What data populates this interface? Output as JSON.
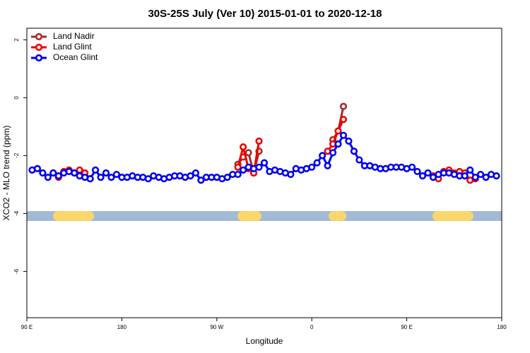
{
  "chart_data": {
    "type": "line",
    "title": "30S-25S July (Ver 10)   2015-01-01 to 2020-12-18",
    "xlabel": "Longitude",
    "ylabel": "XCO2 - MLO trend (ppm)",
    "xlim": [
      90,
      540
    ],
    "ylim": [
      -7.6,
      2.4
    ],
    "xticks": [
      {
        "value": 90,
        "label": "90 E"
      },
      {
        "value": 180,
        "label": "180"
      },
      {
        "value": 270,
        "label": "90 W"
      },
      {
        "value": 360,
        "label": "0"
      },
      {
        "value": 450,
        "label": "90 E"
      },
      {
        "value": 540,
        "label": "180"
      }
    ],
    "yticks": [
      -6,
      -4,
      -2,
      0,
      2
    ],
    "legend": "top-left",
    "series": [
      {
        "name": "Land Nadir",
        "color": "#a52a2a",
        "x": [
          290,
          295,
          300,
          305,
          310,
          315,
          380,
          385,
          390
        ],
        "values": [
          -2.3,
          -2.05,
          -1.9,
          -2.6,
          -1.85,
          null,
          -1.45,
          -1.15,
          -0.3
        ]
      },
      {
        "name": "Land Glint",
        "color": "#ee0000",
        "x": [
          115,
          120,
          125,
          130,
          135,
          140,
          145,
          150,
          155,
          290,
          295,
          300,
          305,
          310,
          315,
          375,
          380,
          385,
          390,
          395,
          475,
          480,
          485,
          490,
          495,
          500,
          505,
          510,
          515
        ],
        "values": [
          -2.6,
          -2.75,
          -2.55,
          -2.5,
          -2.6,
          -2.5,
          -2.6,
          -2.8,
          null,
          -2.4,
          -1.7,
          -2.45,
          -2.6,
          -1.5,
          null,
          -1.85,
          -1.6,
          -1.15,
          -0.75,
          null,
          -2.7,
          -2.8,
          -2.55,
          -2.5,
          -2.6,
          -2.55,
          -2.6,
          -2.85,
          -2.8
        ]
      },
      {
        "name": "Ocean Glint",
        "color": "#0000ee",
        "x": [
          95,
          100,
          105,
          110,
          115,
          120,
          125,
          130,
          135,
          140,
          145,
          150,
          155,
          160,
          165,
          170,
          175,
          180,
          185,
          190,
          195,
          200,
          205,
          210,
          215,
          220,
          225,
          230,
          235,
          240,
          245,
          250,
          255,
          260,
          265,
          270,
          275,
          280,
          285,
          290,
          295,
          300,
          305,
          310,
          315,
          320,
          325,
          330,
          335,
          340,
          345,
          350,
          355,
          360,
          365,
          370,
          375,
          380,
          385,
          390,
          395,
          400,
          405,
          410,
          415,
          420,
          425,
          430,
          435,
          440,
          445,
          450,
          455,
          460,
          465,
          470,
          475,
          480,
          485,
          490,
          495,
          500,
          505,
          510,
          515,
          520,
          525,
          530,
          535
        ],
        "values": [
          -2.5,
          -2.45,
          -2.6,
          -2.75,
          -2.6,
          -2.7,
          -2.6,
          -2.55,
          -2.6,
          -2.7,
          -2.75,
          -2.8,
          -2.5,
          -2.75,
          -2.6,
          -2.75,
          -2.65,
          -2.75,
          -2.75,
          -2.7,
          -2.75,
          -2.75,
          -2.8,
          -2.7,
          -2.75,
          -2.8,
          -2.75,
          -2.7,
          -2.7,
          -2.75,
          -2.7,
          -2.6,
          -2.85,
          -2.75,
          -2.75,
          -2.75,
          -2.8,
          -2.75,
          -2.65,
          -2.65,
          -2.5,
          -2.4,
          -2.45,
          -2.4,
          -2.25,
          -2.55,
          -2.5,
          -2.55,
          -2.6,
          -2.65,
          -2.45,
          -2.5,
          -2.45,
          -2.4,
          -2.25,
          -2.0,
          -2.35,
          -1.9,
          -1.6,
          -1.3,
          -1.5,
          -1.85,
          -2.15,
          -2.35,
          -2.35,
          -2.4,
          -2.45,
          -2.45,
          -2.4,
          -2.4,
          -2.4,
          -2.45,
          -2.4,
          -2.55,
          -2.7,
          -2.6,
          -2.75,
          -2.65,
          -2.6,
          -2.6,
          -2.65,
          -2.7,
          -2.7,
          -2.5,
          -2.75,
          -2.65,
          -2.75,
          -2.65,
          -2.7
        ]
      }
    ]
  }
}
